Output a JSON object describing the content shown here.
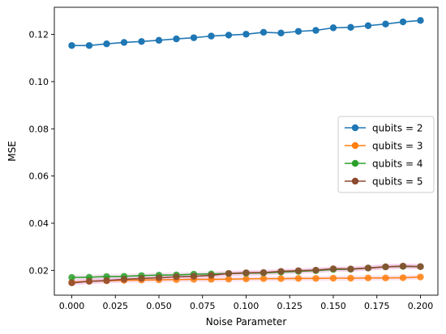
{
  "chart_data": {
    "type": "line",
    "title": "",
    "xlabel": "Noise Parameter",
    "ylabel": "MSE",
    "xlim": [
      -0.01,
      0.21
    ],
    "ylim": [
      0.0095,
      0.1315
    ],
    "xticks": [
      0.0,
      0.025,
      0.05,
      0.075,
      0.1,
      0.125,
      0.15,
      0.175,
      0.2
    ],
    "xtick_labels": [
      "0.000",
      "0.025",
      "0.050",
      "0.075",
      "0.100",
      "0.125",
      "0.150",
      "0.175",
      "0.200"
    ],
    "yticks": [
      0.02,
      0.04,
      0.06,
      0.08,
      0.1,
      0.12
    ],
    "ytick_labels": [
      "0.02",
      "0.04",
      "0.06",
      "0.08",
      "0.10",
      "0.12"
    ],
    "grid": false,
    "legend_position": "center-right",
    "x": [
      0.0,
      0.01,
      0.02,
      0.03,
      0.04,
      0.05,
      0.06,
      0.07,
      0.08,
      0.09,
      0.1,
      0.11,
      0.12,
      0.13,
      0.14,
      0.15,
      0.16,
      0.17,
      0.18,
      0.19,
      0.2
    ],
    "series": [
      {
        "name": "qubits = 2",
        "color": "#1f77b4",
        "values": [
          0.1153,
          0.1153,
          0.116,
          0.1166,
          0.117,
          0.1175,
          0.1181,
          0.1186,
          0.1193,
          0.1197,
          0.1201,
          0.1209,
          0.1206,
          0.1213,
          0.1217,
          0.1228,
          0.123,
          0.1237,
          0.1244,
          0.1253,
          0.1259
        ]
      },
      {
        "name": "qubits = 3",
        "color": "#ff7f0e",
        "values": [
          0.015,
          0.0154,
          0.0156,
          0.0158,
          0.0159,
          0.016,
          0.0161,
          0.0162,
          0.0162,
          0.0163,
          0.0164,
          0.0165,
          0.0165,
          0.0166,
          0.0166,
          0.0167,
          0.0167,
          0.0168,
          0.0168,
          0.0169,
          0.0172
        ]
      },
      {
        "name": "qubits = 4",
        "color": "#2ca02c",
        "values": [
          0.017,
          0.0171,
          0.0174,
          0.0175,
          0.0178,
          0.018,
          0.0181,
          0.0184,
          0.0185,
          0.0187,
          0.0188,
          0.0189,
          0.0193,
          0.0196,
          0.0199,
          0.0204,
          0.0205,
          0.021,
          0.0215,
          0.0217,
          0.0216
        ]
      },
      {
        "name": "qubits = 5",
        "color": "#8c4a2f",
        "values": [
          0.0147,
          0.0154,
          0.0157,
          0.0162,
          0.0166,
          0.0169,
          0.0173,
          0.0175,
          0.0179,
          0.0187,
          0.019,
          0.0191,
          0.0196,
          0.0199,
          0.0201,
          0.0207,
          0.0206,
          0.021,
          0.0215,
          0.0218,
          0.0216
        ]
      }
    ],
    "band_color": "#e377c2"
  }
}
